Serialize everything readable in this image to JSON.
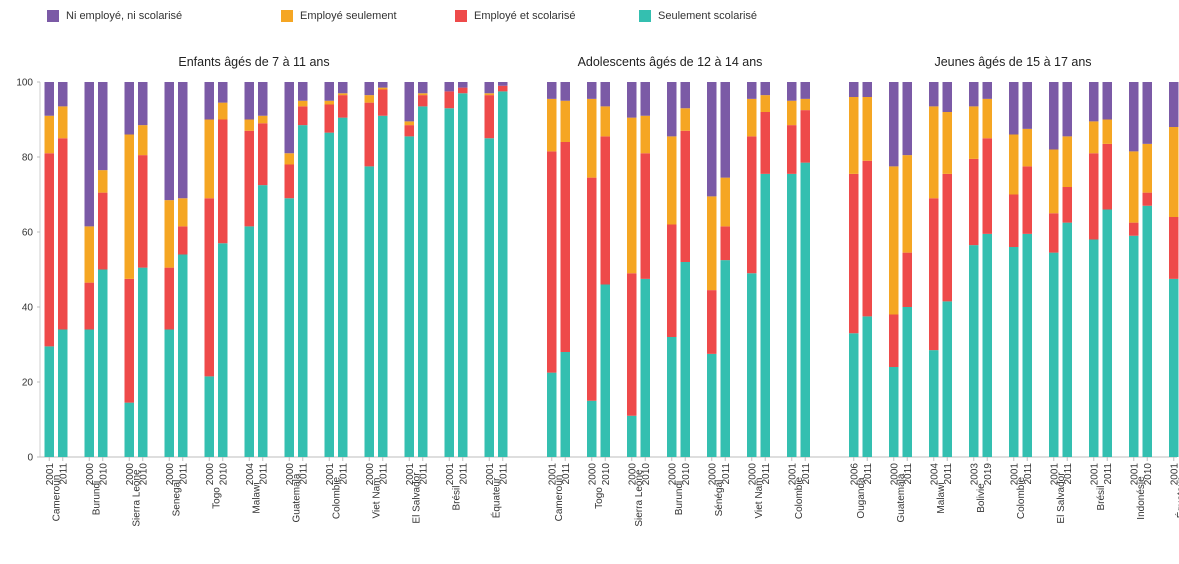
{
  "legend": [
    {
      "label": "Ni employé, ni scolarisé",
      "color": "#7b5aa6"
    },
    {
      "label": "Employé seulement",
      "color": "#f5a623"
    },
    {
      "label": "Employé et scolarisé",
      "color": "#ee4a4a"
    },
    {
      "label": "Seulement scolarisé",
      "color": "#34bfb0"
    }
  ],
  "chart_data": {
    "type": "bar",
    "stacked": true,
    "ylim": [
      0,
      100
    ],
    "yticks": [
      0,
      20,
      40,
      60,
      80,
      100
    ],
    "grid": false,
    "legend_position": "top",
    "series_order": [
      "Seulement scolarisé",
      "Employé et scolarisé",
      "Employé seulement",
      "Ni employé, ni scolarisé"
    ],
    "panels": [
      {
        "title": "Enfants âgés de 7 à 11 ans",
        "groups": [
          {
            "country": "Cameroun",
            "bars": [
              {
                "year": "2001",
                "values": [
                  29.5,
                  51.5,
                  10,
                  9
                ]
              },
              {
                "year": "2011",
                "values": [
                  34,
                  51,
                  8.5,
                  6.5
                ]
              }
            ]
          },
          {
            "country": "Burundi",
            "bars": [
              {
                "year": "2000",
                "values": [
                  34,
                  12.5,
                  15,
                  38.5
                ]
              },
              {
                "year": "2010",
                "values": [
                  50,
                  20.5,
                  6,
                  23.5
                ]
              }
            ]
          },
          {
            "country": "Sierra Leone",
            "bars": [
              {
                "year": "2000",
                "values": [
                  14.5,
                  33,
                  38.5,
                  14
                ]
              },
              {
                "year": "2010",
                "values": [
                  50.5,
                  30,
                  8,
                  11.5
                ]
              }
            ]
          },
          {
            "country": "Senegal",
            "bars": [
              {
                "year": "2000",
                "values": [
                  34,
                  16.5,
                  18,
                  31.5
                ]
              },
              {
                "year": "2011",
                "values": [
                  54,
                  7.5,
                  7.5,
                  31
                ]
              }
            ]
          },
          {
            "country": "Togo",
            "bars": [
              {
                "year": "2000",
                "values": [
                  21.5,
                  47.5,
                  21,
                  10
                ]
              },
              {
                "year": "2010",
                "values": [
                  57,
                  33,
                  4.5,
                  5.5
                ]
              }
            ]
          },
          {
            "country": "Malawi",
            "bars": [
              {
                "year": "2004",
                "values": [
                  61.5,
                  25.5,
                  3,
                  10
                ]
              },
              {
                "year": "2011",
                "values": [
                  72.5,
                  16.5,
                  2,
                  9
                ]
              }
            ]
          },
          {
            "country": "Guatemala",
            "bars": [
              {
                "year": "2000",
                "values": [
                  69,
                  9,
                  3,
                  19
                ]
              },
              {
                "year": "2011",
                "values": [
                  88.5,
                  5,
                  1.5,
                  5
                ]
              }
            ]
          },
          {
            "country": "Colombie",
            "bars": [
              {
                "year": "2001",
                "values": [
                  86.5,
                  7.5,
                  1,
                  5
                ]
              },
              {
                "year": "2011",
                "values": [
                  90.5,
                  6,
                  0.5,
                  3
                ]
              }
            ]
          },
          {
            "country": "Viet Nam",
            "bars": [
              {
                "year": "2000",
                "values": [
                  77.5,
                  17,
                  2,
                  3.5
                ]
              },
              {
                "year": "2011",
                "values": [
                  91,
                  7,
                  0.5,
                  1.5
                ]
              }
            ]
          },
          {
            "country": "El Salvador",
            "bars": [
              {
                "year": "2001",
                "values": [
                  85.5,
                  3,
                  1,
                  10.5
                ]
              },
              {
                "year": "2011",
                "values": [
                  93.5,
                  3,
                  0.5,
                  3
                ]
              }
            ]
          },
          {
            "country": "Brésil",
            "bars": [
              {
                "year": "2001",
                "values": [
                  93,
                  4.5,
                  0,
                  2.5
                ]
              },
              {
                "year": "2011",
                "values": [
                  97,
                  1.5,
                  0,
                  1.5
                ]
              }
            ]
          },
          {
            "country": "Équateur",
            "bars": [
              {
                "year": "2001",
                "values": [
                  85,
                  11.5,
                  0.5,
                  3
                ]
              },
              {
                "year": "2011",
                "values": [
                  97.5,
                  1.5,
                  0,
                  1
                ]
              }
            ]
          }
        ]
      },
      {
        "title": "Adolescents âgés de 12 à 14 ans",
        "groups": [
          {
            "country": "Cameroun",
            "bars": [
              {
                "year": "2001",
                "values": [
                  22.5,
                  59,
                  14,
                  4.5
                ]
              },
              {
                "year": "2011",
                "values": [
                  28,
                  56,
                  11,
                  5
                ]
              }
            ]
          },
          {
            "country": "Togo",
            "bars": [
              {
                "year": "2000",
                "values": [
                  15,
                  59.5,
                  21,
                  4.5
                ]
              },
              {
                "year": "2010",
                "values": [
                  46,
                  39.5,
                  8,
                  6.5
                ]
              }
            ]
          },
          {
            "country": "Sierra Leone",
            "bars": [
              {
                "year": "2000",
                "values": [
                  11,
                  38,
                  41.5,
                  9.5
                ]
              },
              {
                "year": "2010",
                "values": [
                  47.5,
                  33.5,
                  10,
                  9
                ]
              }
            ]
          },
          {
            "country": "Burundi",
            "bars": [
              {
                "year": "2000",
                "values": [
                  32,
                  30,
                  23.5,
                  14.5
                ]
              },
              {
                "year": "2010",
                "values": [
                  52,
                  35,
                  6,
                  7
                ]
              }
            ]
          },
          {
            "country": "Sénégal",
            "bars": [
              {
                "year": "2000",
                "values": [
                  27.5,
                  17,
                  25,
                  30.5
                ]
              },
              {
                "year": "2011",
                "values": [
                  52.5,
                  9,
                  13,
                  25.5
                ]
              }
            ]
          },
          {
            "country": "Viet Nam",
            "bars": [
              {
                "year": "2000",
                "values": [
                  49,
                  36.5,
                  10,
                  4.5
                ]
              },
              {
                "year": "2011",
                "values": [
                  75.5,
                  16.5,
                  4.5,
                  3.5
                ]
              }
            ]
          },
          {
            "country": "Colombie",
            "bars": [
              {
                "year": "2001",
                "values": [
                  75.5,
                  13,
                  6.5,
                  5
                ]
              },
              {
                "year": "2011",
                "values": [
                  78.5,
                  14,
                  3,
                  4.5
                ]
              }
            ]
          }
        ]
      },
      {
        "title": "Jeunes âgés de 15 à 17 ans",
        "groups": [
          {
            "country": "Ouganda",
            "bars": [
              {
                "year": "2006",
                "values": [
                  33,
                  42.5,
                  20.5,
                  4
                ]
              },
              {
                "year": "2011",
                "values": [
                  37.5,
                  41.5,
                  17,
                  4
                ]
              }
            ]
          },
          {
            "country": "Guatemala",
            "bars": [
              {
                "year": "2000",
                "values": [
                  24,
                  14,
                  39.5,
                  22.5
                ]
              },
              {
                "year": "2011",
                "values": [
                  40,
                  14.5,
                  26,
                  19.5
                ]
              }
            ]
          },
          {
            "country": "Malawi",
            "bars": [
              {
                "year": "2004",
                "values": [
                  28.5,
                  40.5,
                  24.5,
                  6.5
                ]
              },
              {
                "year": "2011",
                "values": [
                  41.5,
                  34,
                  16.5,
                  8
                ]
              }
            ]
          },
          {
            "country": "Bolivie",
            "bars": [
              {
                "year": "2003",
                "values": [
                  56.5,
                  23,
                  14,
                  6.5
                ]
              },
              {
                "year": "2019",
                "values": [
                  59.5,
                  25.5,
                  10.5,
                  4.5
                ]
              }
            ]
          },
          {
            "country": "Colombie",
            "bars": [
              {
                "year": "2001",
                "values": [
                  56,
                  14,
                  16,
                  14
                ]
              },
              {
                "year": "2011",
                "values": [
                  59.5,
                  18,
                  10,
                  12.5
                ]
              }
            ]
          },
          {
            "country": "El Salvador",
            "bars": [
              {
                "year": "2001",
                "values": [
                  54.5,
                  10.5,
                  17,
                  18
                ]
              },
              {
                "year": "2011",
                "values": [
                  62.5,
                  9.5,
                  13.5,
                  14.5
                ]
              }
            ]
          },
          {
            "country": "Brésil",
            "bars": [
              {
                "year": "2001",
                "values": [
                  58,
                  23,
                  8.5,
                  10.5
                ]
              },
              {
                "year": "2011",
                "values": [
                  66,
                  17.5,
                  6.5,
                  10
                ]
              }
            ]
          },
          {
            "country": "Indonésie",
            "bars": [
              {
                "year": "2001",
                "values": [
                  59,
                  3.5,
                  19,
                  18.5
                ]
              },
              {
                "year": "2010",
                "values": [
                  67,
                  3.5,
                  13,
                  16.5
                ]
              }
            ]
          },
          {
            "country": "Équateur",
            "bars": [
              {
                "year": "2001",
                "values": [
                  47.5,
                  16.5,
                  24,
                  12
                ]
              }
            ]
          }
        ]
      }
    ]
  }
}
